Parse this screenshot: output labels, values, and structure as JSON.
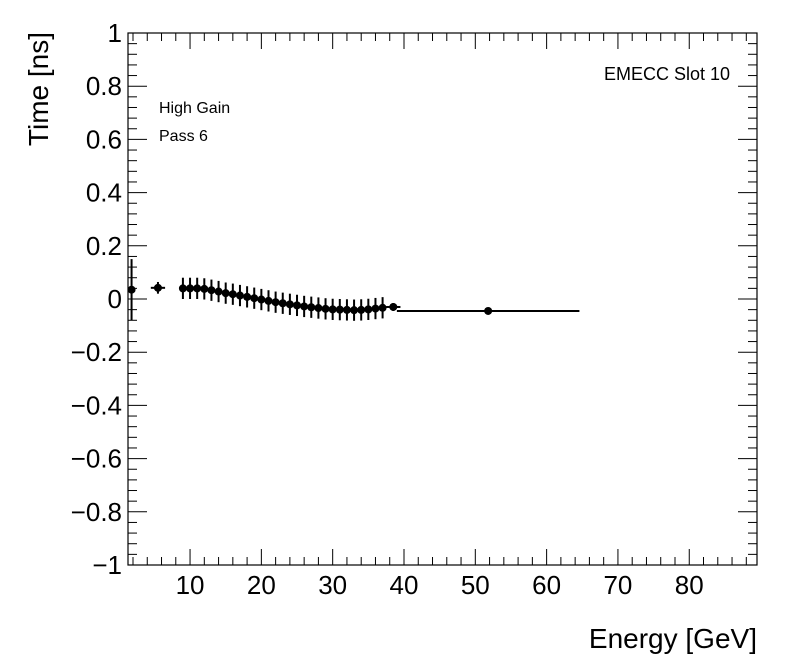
{
  "chart_data": {
    "type": "scatter",
    "title": "",
    "xlabel": "Energy [GeV]",
    "ylabel": "Time [ns]",
    "xlim": [
      1.3,
      89.5
    ],
    "ylim": [
      -1,
      1
    ],
    "x_ticks": [
      10,
      20,
      30,
      40,
      50,
      60,
      70,
      80
    ],
    "x_tick_labels": [
      "10",
      "20",
      "30",
      "40",
      "50",
      "60",
      "70",
      "80"
    ],
    "y_ticks": [
      -1,
      -0.8,
      -0.6,
      -0.4,
      -0.2,
      0,
      0.2,
      0.4,
      0.6,
      0.8,
      1
    ],
    "y_tick_labels": [
      "−1",
      "−0.8",
      "−0.6",
      "−0.4",
      "−0.2",
      "0",
      "0.2",
      "0.4",
      "0.6",
      "0.8",
      "1"
    ],
    "grid": false,
    "annotations": {
      "top_right": "EMECC Slot 10",
      "line1": "High Gain",
      "line2": "Pass 6"
    },
    "series": [
      {
        "name": "EMECC Slot 10",
        "x": [
          1.8,
          5.5,
          9.0,
          10.0,
          11.0,
          12.0,
          13.0,
          14.0,
          15.0,
          16.0,
          17.0,
          18.0,
          19.0,
          20.0,
          21.0,
          22.0,
          23.0,
          24.0,
          25.0,
          26.0,
          27.0,
          28.0,
          29.0,
          30.0,
          31.0,
          32.0,
          33.0,
          34.0,
          35.0,
          36.0,
          37.0,
          38.5,
          51.8
        ],
        "y": [
          0.035,
          0.042,
          0.04,
          0.04,
          0.04,
          0.038,
          0.033,
          0.028,
          0.022,
          0.018,
          0.013,
          0.008,
          0.003,
          -0.002,
          -0.007,
          -0.012,
          -0.016,
          -0.02,
          -0.024,
          -0.028,
          -0.031,
          -0.034,
          -0.037,
          -0.039,
          -0.04,
          -0.041,
          -0.042,
          -0.041,
          -0.039,
          -0.036,
          -0.033,
          -0.03,
          -0.045
        ],
        "x_err_low": [
          0.5,
          1.0,
          0.5,
          0.5,
          0.5,
          0.5,
          0.5,
          0.5,
          0.5,
          0.5,
          0.5,
          0.5,
          0.5,
          0.5,
          0.5,
          0.5,
          0.5,
          0.5,
          0.5,
          0.5,
          0.5,
          0.5,
          0.5,
          0.5,
          0.5,
          0.5,
          0.5,
          0.5,
          0.5,
          0.5,
          0.5,
          1.0,
          12.8
        ],
        "x_err_high": [
          0.5,
          1.0,
          0.5,
          0.5,
          0.5,
          0.5,
          0.5,
          0.5,
          0.5,
          0.5,
          0.5,
          0.5,
          0.5,
          0.5,
          0.5,
          0.5,
          0.5,
          0.5,
          0.5,
          0.5,
          0.5,
          0.5,
          0.5,
          0.5,
          0.5,
          0.5,
          0.5,
          0.5,
          0.5,
          0.5,
          0.5,
          1.0,
          12.8
        ],
        "y_err": [
          0.115,
          0.022,
          0.04,
          0.04,
          0.04,
          0.04,
          0.04,
          0.04,
          0.04,
          0.04,
          0.04,
          0.04,
          0.04,
          0.04,
          0.04,
          0.04,
          0.04,
          0.04,
          0.04,
          0.04,
          0.04,
          0.04,
          0.04,
          0.04,
          0.04,
          0.04,
          0.04,
          0.04,
          0.04,
          0.04,
          0.04,
          0.015,
          0.01
        ]
      }
    ]
  }
}
